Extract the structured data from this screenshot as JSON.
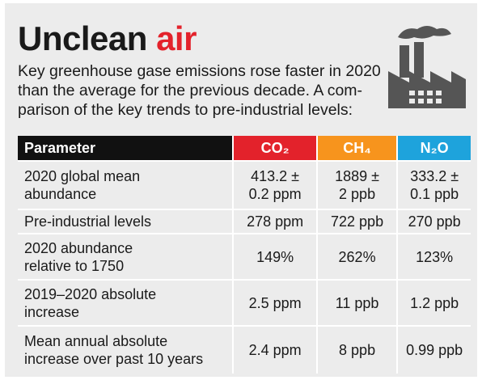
{
  "header": {
    "title": "Unclean",
    "title_accent": "air",
    "subtitle": [
      "Key greenhouse gase emissions rose faster in 2020",
      "than the average for the previous decade. A com-",
      "parison of the key trends to pre-industrial levels:"
    ]
  },
  "table": {
    "columns": [
      "Parameter",
      "CO₂",
      "CH₄",
      "N₂O"
    ],
    "column_colors": [
      "#111111",
      "#e3222b",
      "#f7941d",
      "#1ea3dc"
    ],
    "rows": [
      [
        [
          "2020 global mean",
          "abundance"
        ],
        [
          "413.2 ±",
          "0.2 ppm"
        ],
        [
          "1889 ±",
          "2 ppb"
        ],
        [
          "333.2 ±",
          "0.1 ppb"
        ]
      ],
      [
        [
          "Pre-industrial levels"
        ],
        [
          "278 ppm"
        ],
        [
          "722 ppb"
        ],
        [
          "270 ppb"
        ]
      ],
      [
        [
          "2020 abundance",
          "relative to 1750"
        ],
        [
          "149%"
        ],
        [
          "262%"
        ],
        [
          "123%"
        ]
      ],
      [
        [
          "2019–2020 absolute",
          "increase"
        ],
        [
          "2.5 ppm"
        ],
        [
          "11 ppb"
        ],
        [
          "1.2 ppb"
        ]
      ],
      [
        [
          "Mean annual absolute",
          "increase over past 10 years"
        ],
        [
          "2.4 ppm"
        ],
        [
          "8 ppb"
        ],
        [
          "0.99 ppb"
        ]
      ]
    ]
  }
}
